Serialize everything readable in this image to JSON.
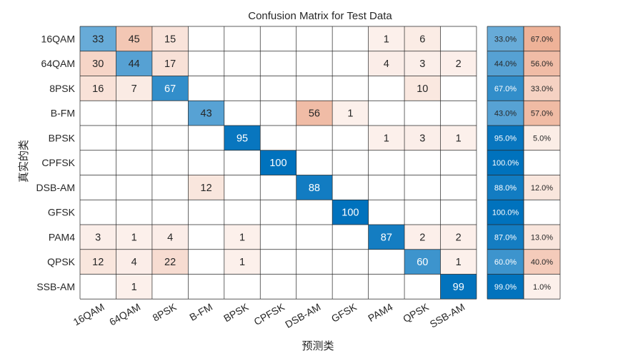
{
  "chart_data": {
    "type": "heatmap",
    "title": "Confusion Matrix for Test Data",
    "xlabel": "预测类",
    "ylabel": "真实的类",
    "classes": [
      "16QAM",
      "64QAM",
      "8PSK",
      "B-FM",
      "BPSK",
      "CPFSK",
      "DSB-AM",
      "GFSK",
      "PAM4",
      "QPSK",
      "SSB-AM"
    ],
    "matrix": [
      [
        33,
        45,
        15,
        0,
        0,
        0,
        0,
        0,
        1,
        6,
        0
      ],
      [
        30,
        44,
        17,
        0,
        0,
        0,
        0,
        0,
        4,
        3,
        2
      ],
      [
        16,
        7,
        67,
        0,
        0,
        0,
        0,
        0,
        0,
        10,
        0
      ],
      [
        0,
        0,
        0,
        43,
        0,
        0,
        56,
        1,
        0,
        0,
        0
      ],
      [
        0,
        0,
        0,
        0,
        95,
        0,
        0,
        0,
        1,
        3,
        1
      ],
      [
        0,
        0,
        0,
        0,
        0,
        100,
        0,
        0,
        0,
        0,
        0
      ],
      [
        0,
        0,
        0,
        12,
        0,
        0,
        88,
        0,
        0,
        0,
        0
      ],
      [
        0,
        0,
        0,
        0,
        0,
        0,
        0,
        100,
        0,
        0,
        0
      ],
      [
        3,
        1,
        4,
        0,
        1,
        0,
        0,
        0,
        87,
        2,
        2
      ],
      [
        12,
        4,
        22,
        0,
        1,
        0,
        0,
        0,
        0,
        60,
        1
      ],
      [
        0,
        1,
        0,
        0,
        0,
        0,
        0,
        0,
        0,
        0,
        99
      ]
    ],
    "row_summary": {
      "correct": [
        "33.0%",
        "44.0%",
        "67.0%",
        "43.0%",
        "95.0%",
        "100.0%",
        "88.0%",
        "100.0%",
        "87.0%",
        "60.0%",
        "99.0%"
      ],
      "incorrect": [
        "67.0%",
        "56.0%",
        "33.0%",
        "57.0%",
        "5.0%",
        "",
        "12.0%",
        "",
        "13.0%",
        "40.0%",
        "1.0%"
      ]
    },
    "colors": {
      "correct": "#0072bd",
      "incorrect": "#d95319",
      "background": "#ffffff",
      "grid": "#262626"
    }
  }
}
